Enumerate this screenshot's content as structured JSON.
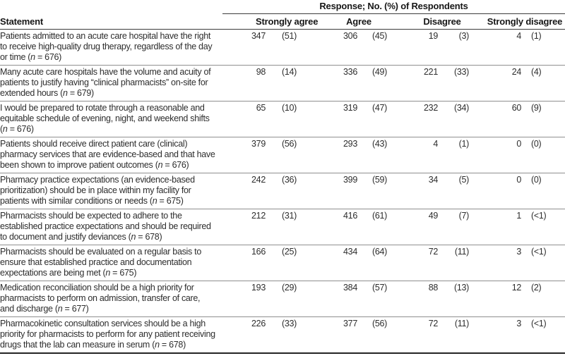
{
  "table": {
    "spanner": "Response; No. (%) of Respondents",
    "statement_header": "Statement",
    "columns": [
      "Strongly agree",
      "Agree",
      "Disagree",
      "Strongly disagree"
    ],
    "rows": [
      {
        "statement": "Patients admitted to an acute care hospital have the right to receive high-quality drug therapy, regardless of the day or time",
        "n": "676",
        "sa": {
          "count": "347",
          "pct": "(51)"
        },
        "a": {
          "count": "306",
          "pct": "(45)"
        },
        "d": {
          "count": "19",
          "pct": "(3)"
        },
        "sd": {
          "count": "4",
          "pct": "(1)"
        }
      },
      {
        "statement": "Many acute care hospitals have the volume and acuity of patients to justify having “clinical pharmacists” on-site for extended hours",
        "n": "679",
        "sa": {
          "count": "98",
          "pct": "(14)"
        },
        "a": {
          "count": "336",
          "pct": "(49)"
        },
        "d": {
          "count": "221",
          "pct": "(33)"
        },
        "sd": {
          "count": "24",
          "pct": "(4)"
        }
      },
      {
        "statement": "I would be prepared to rotate through a reasonable and equitable schedule of evening, night, and weekend shifts",
        "n": "676",
        "sa": {
          "count": "65",
          "pct": "(10)"
        },
        "a": {
          "count": "319",
          "pct": "(47)"
        },
        "d": {
          "count": "232",
          "pct": "(34)"
        },
        "sd": {
          "count": "60",
          "pct": "(9)"
        }
      },
      {
        "statement": "Patients should receive direct patient care (clinical) pharmacy services that are evidence-based and that have been shown to improve patient outcomes",
        "n": "676",
        "sa": {
          "count": "379",
          "pct": "(56)"
        },
        "a": {
          "count": "293",
          "pct": "(43)"
        },
        "d": {
          "count": "4",
          "pct": "(1)"
        },
        "sd": {
          "count": "0",
          "pct": "(0)"
        }
      },
      {
        "statement": "Pharmacy practice expectations (an evidence-based prioritization) should be in place within my facility for patients with similar conditions or needs",
        "n": "675",
        "sa": {
          "count": "242",
          "pct": "(36)"
        },
        "a": {
          "count": "399",
          "pct": "(59)"
        },
        "d": {
          "count": "34",
          "pct": "(5)"
        },
        "sd": {
          "count": "0",
          "pct": "(0)"
        }
      },
      {
        "statement": "Pharmacists should be expected to adhere to the established practice expectations and should be required to document and justify deviances",
        "n": "678",
        "sa": {
          "count": "212",
          "pct": "(31)"
        },
        "a": {
          "count": "416",
          "pct": "(61)"
        },
        "d": {
          "count": "49",
          "pct": "(7)"
        },
        "sd": {
          "count": "1",
          "pct": "(<1)"
        }
      },
      {
        "statement": "Pharmacists should be evaluated on a regular basis to ensure that established practice and documentation expectations are being met",
        "n": "675",
        "sa": {
          "count": "166",
          "pct": "(25)"
        },
        "a": {
          "count": "434",
          "pct": "(64)"
        },
        "d": {
          "count": "72",
          "pct": "(11)"
        },
        "sd": {
          "count": "3",
          "pct": "(<1)"
        }
      },
      {
        "statement": "Medication reconciliation should be a high priority for pharmacists to perform on admission, transfer of care, and discharge",
        "n": "677",
        "sa": {
          "count": "193",
          "pct": "(29)"
        },
        "a": {
          "count": "384",
          "pct": "(57)"
        },
        "d": {
          "count": "88",
          "pct": "(13)"
        },
        "sd": {
          "count": "12",
          "pct": "(2)"
        }
      },
      {
        "statement": "Pharmacokinetic consultation services should be a high priority for pharmacists to perform for any patient receiving drugs that the lab can measure in serum",
        "n": "678",
        "sa": {
          "count": "226",
          "pct": "(33)"
        },
        "a": {
          "count": "377",
          "pct": "(56)"
        },
        "d": {
          "count": "72",
          "pct": "(11)"
        },
        "sd": {
          "count": "3",
          "pct": "(<1)"
        }
      }
    ]
  }
}
